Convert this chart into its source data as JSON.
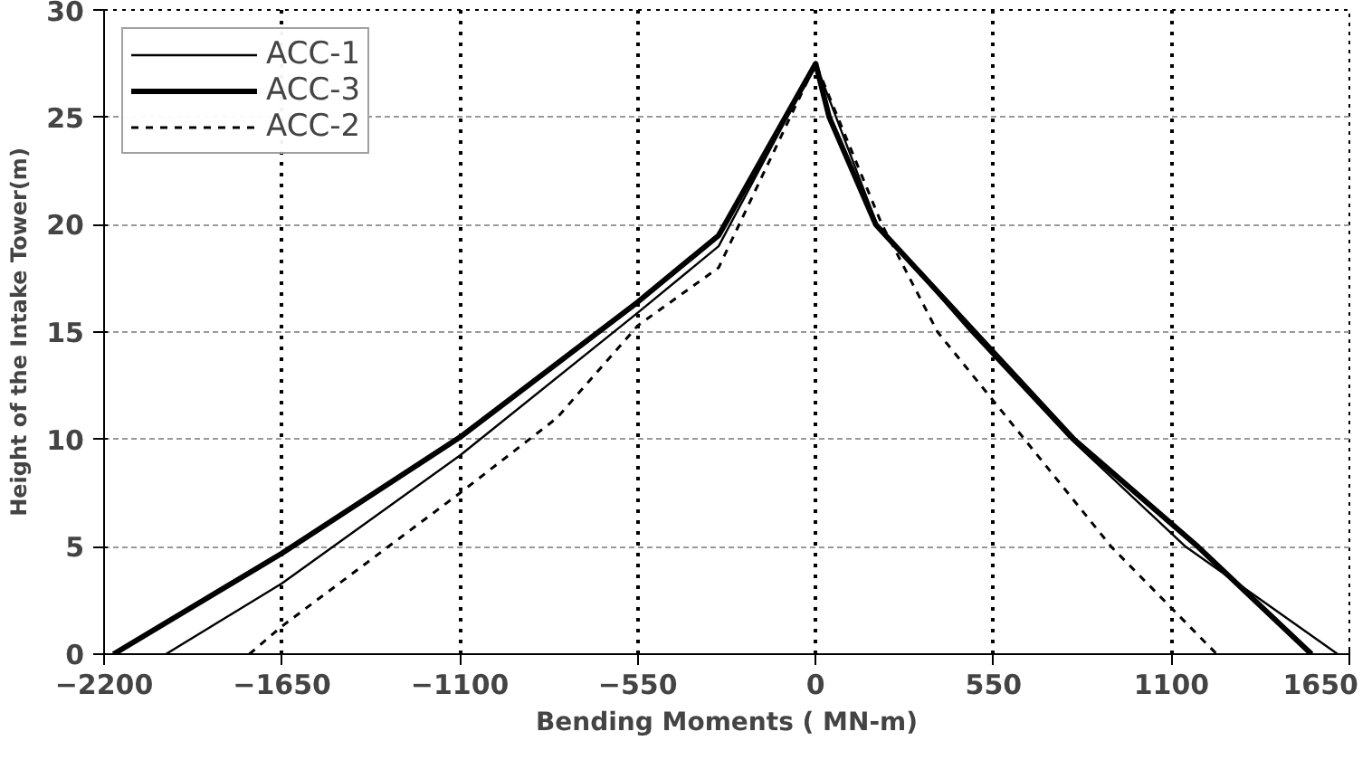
{
  "chart_data": {
    "type": "line",
    "xlabel": "Bending Moments ( MN-m)",
    "ylabel": "Height of the Intake Tower(m)",
    "xlim": [
      -2200,
      1650
    ],
    "xticks": [
      -2200,
      -1650,
      -1100,
      -550,
      0,
      550,
      1100,
      1650
    ],
    "ylim": [
      0,
      30
    ],
    "yticks": [
      0,
      5,
      10,
      15,
      20,
      25,
      30
    ],
    "grid": true,
    "legend": "top left",
    "series": [
      {
        "name": "ACC-1",
        "color": "#000000",
        "line_style": "solid",
        "x": [
          -2009,
          -1650,
          -1100,
          -550,
          -300,
          0,
          190,
          480,
          790,
          1144,
          1614
        ],
        "values": [
          0,
          3.3,
          9.25,
          15.9,
          19,
          27.5,
          20,
          15,
          10,
          5,
          0
        ]
      },
      {
        "name": "ACC-3",
        "color": "#000000",
        "line_style": "solid",
        "x": [
          -2171,
          -1650,
          -1100,
          -550,
          -300,
          0,
          42,
          186,
          492,
          799,
          1182,
          1533
        ],
        "values": [
          0,
          4.7,
          10.1,
          16.4,
          19.5,
          27.5,
          25,
          20,
          15,
          10,
          5,
          0
        ]
      },
      {
        "name": "ACC-2",
        "color": "#000000",
        "line_style": "dashed",
        "x": [
          -1751,
          -1650,
          -1100,
          -800,
          -550,
          -300,
          0,
          205,
          377,
          646,
          914,
          1240
        ],
        "values": [
          0,
          1.3,
          7.5,
          11,
          15.3,
          18,
          27.5,
          20,
          15,
          10,
          5,
          0
        ]
      }
    ]
  }
}
